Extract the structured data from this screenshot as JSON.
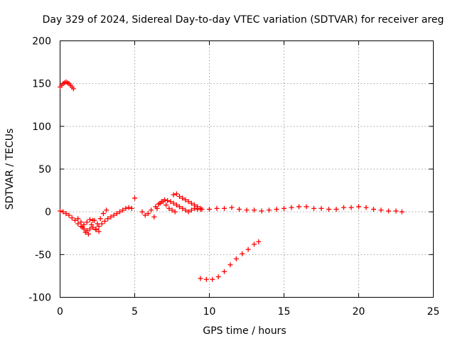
{
  "chart_data": {
    "type": "scatter",
    "title": "Day 329 of 2024, Sidereal Day-to-day VTEC variation (SDTVAR) for receiver areg",
    "xlabel": "GPS time / hours",
    "ylabel": "SDTVAR / TECUs",
    "xlim": [
      0,
      25
    ],
    "ylim": [
      -100,
      200
    ],
    "xticks": [
      0,
      5,
      10,
      15,
      20,
      25
    ],
    "yticks": [
      -100,
      -50,
      0,
      50,
      100,
      150,
      200
    ],
    "grid": true,
    "marker": "plus",
    "color": "#ff0000",
    "series": [
      {
        "name": "arc-early-high",
        "x": [
          0.0,
          0.1,
          0.2,
          0.3,
          0.4,
          0.5,
          0.6,
          0.7,
          0.8,
          0.9
        ],
        "y": [
          146,
          148,
          150,
          151,
          152,
          151,
          150,
          148,
          146,
          144
        ]
      },
      {
        "name": "arc-early-low",
        "x": [
          0.0,
          0.2,
          0.4,
          0.6,
          0.8,
          1.0,
          1.2,
          1.4,
          1.6,
          1.8,
          2.0,
          2.2,
          2.4,
          2.6
        ],
        "y": [
          1,
          0,
          -2,
          -4,
          -7,
          -10,
          -14,
          -17,
          -20,
          -22,
          -20,
          -18,
          -21,
          -23
        ]
      },
      {
        "name": "arc-early-spike",
        "x": [
          1.5,
          1.7,
          1.9,
          2.1,
          2.3,
          2.5,
          2.7,
          2.9,
          3.1
        ],
        "y": [
          -18,
          -24,
          -26,
          -15,
          -10,
          -14,
          -8,
          -2,
          2
        ]
      },
      {
        "name": "arc-dip",
        "x": [
          1.2,
          1.4,
          1.6,
          1.8,
          2.0,
          2.2
        ],
        "y": [
          -8,
          -12,
          -15,
          -12,
          -9,
          -10
        ]
      },
      {
        "name": "arc-rise",
        "x": [
          2.4,
          2.6,
          2.8,
          3.0,
          3.2,
          3.4,
          3.6,
          3.8,
          4.0,
          4.2,
          4.4,
          4.6,
          4.8
        ],
        "y": [
          -20,
          -17,
          -14,
          -11,
          -8,
          -6,
          -4,
          -2,
          0,
          2,
          4,
          5,
          4
        ]
      },
      {
        "name": "arc-mid-a",
        "x": [
          5.0,
          5.5,
          5.7,
          5.9,
          6.1,
          6.3,
          6.5,
          6.7,
          6.9,
          7.1,
          7.3,
          7.5,
          7.7
        ],
        "y": [
          16,
          0,
          -4,
          -2,
          2,
          -6,
          4,
          10,
          12,
          8,
          4,
          2,
          0
        ]
      },
      {
        "name": "arc-mid-b",
        "x": [
          6.4,
          6.6,
          6.8,
          7.0,
          7.2,
          7.4,
          7.6,
          7.8,
          8.0,
          8.2,
          8.4,
          8.6,
          8.8,
          9.0,
          9.2,
          9.4
        ],
        "y": [
          6,
          9,
          12,
          14,
          13,
          12,
          10,
          8,
          6,
          4,
          2,
          0,
          2,
          4,
          3,
          3
        ]
      },
      {
        "name": "arc-mid-c",
        "x": [
          7.6,
          7.8,
          8.0,
          8.2,
          8.4,
          8.6,
          8.8,
          9.0,
          9.2,
          9.4
        ],
        "y": [
          20,
          21,
          18,
          16,
          14,
          12,
          10,
          8,
          6,
          4
        ]
      },
      {
        "name": "arc-flat",
        "x": [
          9.5,
          10.0,
          10.5,
          11.0,
          11.5,
          12.0,
          12.5,
          13.0,
          13.5,
          14.0,
          14.5,
          15.0,
          15.5,
          16.0,
          16.5,
          17.0,
          17.5,
          18.0,
          18.5,
          19.0,
          19.5,
          20.0,
          20.5,
          21.0,
          21.5,
          22.0,
          22.5,
          22.9
        ],
        "y": [
          3,
          3,
          4,
          4,
          5,
          3,
          2,
          2,
          1,
          2,
          3,
          4,
          5,
          6,
          6,
          4,
          4,
          3,
          3,
          5,
          5,
          6,
          5,
          3,
          2,
          1,
          1,
          0
        ]
      },
      {
        "name": "arc-low",
        "x": [
          9.4,
          9.8,
          10.2,
          10.6,
          11.0,
          11.4,
          11.8,
          12.2,
          12.6,
          13.0,
          13.3
        ],
        "y": [
          -78,
          -79,
          -79,
          -76,
          -70,
          -62,
          -55,
          -49,
          -44,
          -38,
          -35
        ]
      }
    ]
  }
}
